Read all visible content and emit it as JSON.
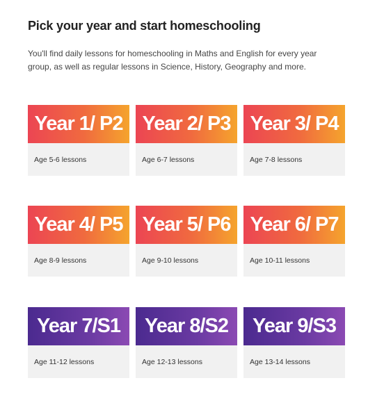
{
  "heading": "Pick your year and start homeschooling",
  "intro": "You'll find daily lessons for homeschooling in Maths and English for every year group, as well as regular lessons in Science, History, Geography and more.",
  "colors": {
    "warm_gradient": [
      "#ec4553",
      "#f06a3f",
      "#f5a42d"
    ],
    "purple_gradient": [
      "#4b2a8f",
      "#6a3aa2",
      "#8b4ab3"
    ],
    "card_background": "#f1f1f1"
  },
  "cards": [
    {
      "title": "Year 1/ P2",
      "age": "Age 5-6 lessons",
      "style": "warm"
    },
    {
      "title": "Year 2/ P3",
      "age": "Age 6-7 lessons",
      "style": "warm"
    },
    {
      "title": "Year 3/ P4",
      "age": "Age 7-8 lessons",
      "style": "warm"
    },
    {
      "title": "Year 4/ P5",
      "age": "Age 8-9 lessons",
      "style": "warm"
    },
    {
      "title": "Year 5/ P6",
      "age": "Age 9-10 lessons",
      "style": "warm"
    },
    {
      "title": "Year 6/ P7",
      "age": "Age 10-11 lessons",
      "style": "warm"
    },
    {
      "title": "Year 7/S1",
      "age": "Age 11-12 lessons",
      "style": "purple"
    },
    {
      "title": "Year 8/S2",
      "age": "Age 12-13 lessons",
      "style": "purple"
    },
    {
      "title": "Year 9/S3",
      "age": "Age 13-14 lessons",
      "style": "purple"
    }
  ]
}
